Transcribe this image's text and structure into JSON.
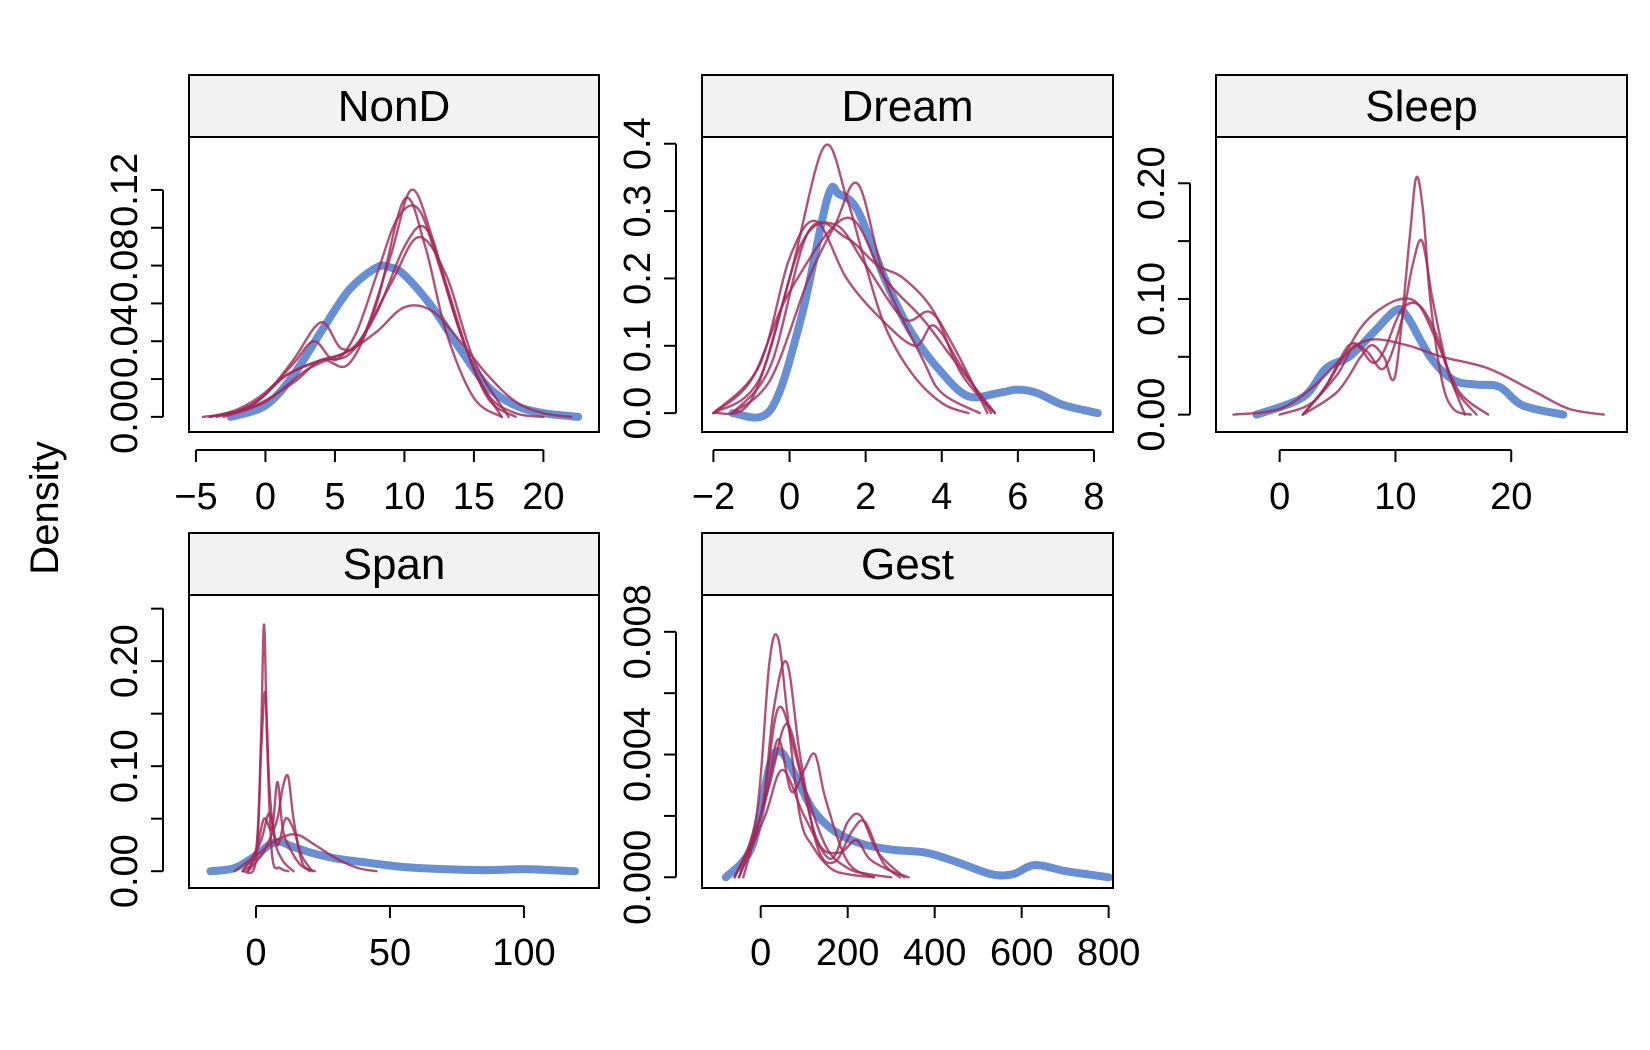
{
  "y_label": "Density",
  "colors": {
    "observed": "#5b84cf",
    "imputed": "#a2295a",
    "strip_bg": "#f2f2f2",
    "axis": "#000000"
  },
  "chart_data": [
    {
      "type": "line",
      "panel": "NonD",
      "title": "NonD",
      "xlim": [
        -5.5,
        24
      ],
      "ylim": [
        -0.008,
        0.148
      ],
      "x_ticks": [
        -5,
        0,
        5,
        10,
        15,
        20
      ],
      "x_tick_labels": [
        "−5",
        "0",
        "5",
        "10",
        "15",
        "20"
      ],
      "y_ticks": [
        0.0,
        0.02,
        0.04,
        0.06,
        0.08,
        0.1,
        0.12
      ],
      "y_tick_labels": [
        "0.00",
        "",
        "0.04",
        "",
        "0.08",
        "",
        "0.12"
      ],
      "observed": {
        "x": [
          -2.5,
          0,
          2,
          4,
          6,
          8,
          9,
          10,
          12,
          14,
          16,
          18,
          20,
          22.5
        ],
        "y": [
          0,
          0.006,
          0.022,
          0.045,
          0.067,
          0.079,
          0.079,
          0.075,
          0.058,
          0.036,
          0.016,
          0.006,
          0.002,
          0
        ]
      },
      "imputed": [
        {
          "x": [
            -4.5,
            -2,
            0,
            2,
            4,
            5.5,
            7,
            9,
            10.5,
            12,
            14,
            16,
            18,
            20
          ],
          "y": [
            0,
            0.003,
            0.012,
            0.03,
            0.05,
            0.036,
            0.042,
            0.085,
            0.12,
            0.095,
            0.045,
            0.012,
            0.002,
            0
          ]
        },
        {
          "x": [
            -4,
            -2,
            0,
            2,
            3.5,
            5,
            6.5,
            8,
            9.5,
            11,
            12.5,
            14,
            16,
            18
          ],
          "y": [
            0,
            0.004,
            0.013,
            0.028,
            0.04,
            0.03,
            0.044,
            0.075,
            0.105,
            0.11,
            0.08,
            0.045,
            0.01,
            0
          ]
        },
        {
          "x": [
            -4,
            -1,
            1.5,
            4,
            6,
            8,
            10,
            11.5,
            13,
            15,
            17
          ],
          "y": [
            0,
            0.006,
            0.022,
            0.03,
            0.033,
            0.055,
            0.09,
            0.1,
            0.07,
            0.025,
            0
          ]
        },
        {
          "x": [
            -3.5,
            -1,
            1.5,
            4,
            6.5,
            9,
            11,
            13,
            15,
            17.5
          ],
          "y": [
            0,
            0.006,
            0.022,
            0.03,
            0.038,
            0.07,
            0.095,
            0.075,
            0.03,
            0
          ]
        },
        {
          "x": [
            -4,
            -1,
            2,
            4,
            6,
            8,
            10,
            11.5,
            13,
            15,
            17
          ],
          "y": [
            0,
            0.005,
            0.018,
            0.03,
            0.028,
            0.06,
            0.115,
            0.09,
            0.045,
            0.01,
            0
          ]
        },
        {
          "x": [
            -3,
            0,
            3,
            6,
            8,
            10,
            12,
            14,
            16,
            18,
            20,
            22
          ],
          "y": [
            0,
            0.008,
            0.025,
            0.035,
            0.045,
            0.058,
            0.056,
            0.04,
            0.022,
            0.008,
            0.002,
            0
          ]
        }
      ]
    },
    {
      "type": "line",
      "panel": "Dream",
      "title": "Dream",
      "xlim": [
        -2.3,
        8.5
      ],
      "ylim": [
        -0.028,
        0.41
      ],
      "x_ticks": [
        -2,
        0,
        2,
        4,
        6,
        8
      ],
      "x_tick_labels": [
        "−2",
        "0",
        "2",
        "4",
        "6",
        "8"
      ],
      "y_ticks": [
        0.0,
        0.1,
        0.2,
        0.3,
        0.4
      ],
      "y_tick_labels": [
        "0.0",
        "0.1",
        "0.2",
        "0.3",
        "0.4"
      ],
      "observed": {
        "x": [
          -1.5,
          -0.5,
          0.3,
          1.0,
          1.3,
          1.8,
          2.5,
          3.2,
          4.0,
          4.7,
          5.5,
          6.0,
          6.5,
          7.2,
          8.1
        ],
        "y": [
          0,
          0.005,
          0.14,
          0.32,
          0.325,
          0.3,
          0.2,
          0.12,
          0.06,
          0.025,
          0.03,
          0.035,
          0.03,
          0.012,
          0
        ]
      },
      "imputed": [
        {
          "x": [
            -2,
            -1,
            0,
            0.9,
            1.5,
            2.0,
            2.5,
            3.2,
            4,
            4.7
          ],
          "y": [
            0,
            0.02,
            0.2,
            0.395,
            0.32,
            0.22,
            0.13,
            0.06,
            0.015,
            0
          ]
        },
        {
          "x": [
            -1.5,
            -0.5,
            0.5,
            1.2,
            1.8,
            2.5,
            3.5,
            4,
            5
          ],
          "y": [
            0,
            0.05,
            0.2,
            0.28,
            0.34,
            0.2,
            0.08,
            0.03,
            0
          ]
        },
        {
          "x": [
            -2,
            -0.8,
            0.3,
            1.2,
            2.0,
            3.0,
            3.7,
            4.3,
            5.2
          ],
          "y": [
            0,
            0.05,
            0.25,
            0.28,
            0.22,
            0.14,
            0.15,
            0.1,
            0
          ]
        },
        {
          "x": [
            -2,
            -0.8,
            0,
            0.7,
            1.5,
            2.4,
            3.3,
            3.8,
            4.5,
            5.3
          ],
          "y": [
            0,
            0.07,
            0.23,
            0.285,
            0.2,
            0.14,
            0.1,
            0.13,
            0.07,
            0
          ]
        },
        {
          "x": [
            -1.5,
            -0.5,
            0.5,
            1.5,
            2.3,
            3.0,
            3.8,
            4.5,
            5.4
          ],
          "y": [
            0,
            0.07,
            0.27,
            0.26,
            0.22,
            0.2,
            0.15,
            0.06,
            0
          ]
        },
        {
          "x": [
            -2,
            -1,
            0,
            1.5,
            2.5,
            3.5,
            4.3,
            5.4
          ],
          "y": [
            0,
            0.05,
            0.18,
            0.29,
            0.2,
            0.14,
            0.08,
            0
          ]
        }
      ]
    },
    {
      "type": "line",
      "panel": "Sleep",
      "title": "Sleep",
      "xlim": [
        -5.5,
        30
      ],
      "ylim": [
        -0.015,
        0.24
      ],
      "x_ticks": [
        0,
        10,
        20
      ],
      "x_tick_labels": [
        "0",
        "10",
        "20"
      ],
      "y_ticks": [
        0.0,
        0.05,
        0.1,
        0.15,
        0.2
      ],
      "y_tick_labels": [
        "0.00",
        "",
        "0.10",
        "",
        "0.20"
      ],
      "observed": {
        "x": [
          -2,
          2,
          4,
          6,
          8,
          10,
          11,
          13,
          15,
          17,
          19,
          21,
          24.5
        ],
        "y": [
          0,
          0.015,
          0.04,
          0.05,
          0.07,
          0.09,
          0.085,
          0.05,
          0.03,
          0.026,
          0.024,
          0.008,
          0
        ]
      },
      "imputed": [
        {
          "x": [
            2,
            5,
            7,
            8,
            9,
            10,
            11.2,
            11.8,
            12.4,
            13,
            14,
            15,
            16.5
          ],
          "y": [
            0,
            0.02,
            0.05,
            0.06,
            0.05,
            0.035,
            0.15,
            0.205,
            0.175,
            0.1,
            0.03,
            0.005,
            0
          ]
        },
        {
          "x": [
            2,
            4,
            6,
            7.5,
            9,
            10.5,
            11.5,
            12.3,
            13.2,
            14.5,
            16
          ],
          "y": [
            0,
            0.025,
            0.06,
            0.055,
            0.04,
            0.08,
            0.13,
            0.15,
            0.1,
            0.04,
            0
          ]
        },
        {
          "x": [
            0,
            3,
            5.5,
            7,
            8.5,
            10.5,
            12,
            13.5,
            15.5,
            18
          ],
          "y": [
            0,
            0.012,
            0.05,
            0.075,
            0.09,
            0.1,
            0.095,
            0.065,
            0.02,
            0
          ]
        },
        {
          "x": [
            -4,
            0,
            3,
            6,
            8,
            11,
            14,
            18,
            22,
            25,
            28
          ],
          "y": [
            0,
            0.005,
            0.025,
            0.055,
            0.065,
            0.06,
            0.05,
            0.04,
            0.02,
            0.005,
            0
          ]
        },
        {
          "x": [
            2,
            5,
            6.5,
            8,
            9,
            10.5,
            12,
            13.5,
            15,
            17
          ],
          "y": [
            0,
            0.035,
            0.06,
            0.045,
            0.055,
            0.09,
            0.095,
            0.07,
            0.025,
            0
          ]
        }
      ]
    },
    {
      "type": "line",
      "panel": "Span",
      "title": "Span",
      "xlim": [
        -25,
        128
      ],
      "ylim": [
        -0.016,
        0.263
      ],
      "x_ticks": [
        0,
        50,
        100
      ],
      "x_tick_labels": [
        "0",
        "50",
        "100"
      ],
      "y_ticks": [
        0.0,
        0.05,
        0.1,
        0.15,
        0.2,
        0.25
      ],
      "y_tick_labels": [
        "0.00",
        "",
        "0.10",
        "",
        "0.20",
        ""
      ],
      "observed": {
        "x": [
          -17,
          -8,
          0,
          5,
          9,
          13,
          20,
          30,
          42,
          55,
          70,
          85,
          100,
          110,
          119
        ],
        "y": [
          0,
          0.003,
          0.015,
          0.025,
          0.028,
          0.024,
          0.018,
          0.012,
          0.008,
          0.004,
          0.002,
          0.001,
          0.002,
          0.001,
          0
        ]
      },
      "imputed": [
        {
          "x": [
            -5,
            0,
            1.8,
            3,
            4.2,
            6,
            9,
            12
          ],
          "y": [
            0,
            0.01,
            0.12,
            0.235,
            0.12,
            0.015,
            0.003,
            0
          ]
        },
        {
          "x": [
            -5,
            0,
            2,
            3.5,
            5,
            7,
            10,
            14
          ],
          "y": [
            0,
            0.02,
            0.12,
            0.17,
            0.08,
            0.03,
            0.01,
            0
          ]
        },
        {
          "x": [
            -5,
            0,
            3,
            6,
            8,
            10,
            13,
            17,
            22
          ],
          "y": [
            0,
            0.02,
            0.05,
            0.04,
            0.085,
            0.04,
            0.02,
            0.005,
            0
          ]
        },
        {
          "x": [
            -3,
            2,
            5,
            8,
            10,
            12,
            14,
            17,
            20
          ],
          "y": [
            0,
            0.015,
            0.03,
            0.05,
            0.08,
            0.09,
            0.05,
            0.01,
            0
          ]
        },
        {
          "x": [
            -3,
            2,
            5,
            8,
            11,
            14,
            17,
            21
          ],
          "y": [
            0,
            0.03,
            0.055,
            0.025,
            0.05,
            0.04,
            0.015,
            0
          ]
        },
        {
          "x": [
            -8,
            0,
            8,
            15,
            22,
            30,
            38,
            45
          ],
          "y": [
            0,
            0.015,
            0.03,
            0.035,
            0.025,
            0.012,
            0.003,
            0
          ]
        }
      ]
    },
    {
      "type": "line",
      "panel": "Gest",
      "title": "Gest",
      "xlim": [
        -135,
        810
      ],
      "ylim": [
        -0.00035,
        0.0092
      ],
      "x_ticks": [
        0,
        200,
        400,
        600,
        800
      ],
      "x_tick_labels": [
        "0",
        "200",
        "400",
        "600",
        "800"
      ],
      "y_ticks": [
        0.0,
        0.002,
        0.004,
        0.006,
        0.008
      ],
      "y_tick_labels": [
        "0.000",
        "",
        "0.004",
        "",
        "0.008"
      ],
      "observed": {
        "x": [
          -80,
          -20,
          20,
          45,
          80,
          120,
          170,
          230,
          300,
          380,
          450,
          530,
          580,
          630,
          700,
          750,
          800
        ],
        "y": [
          0,
          0.001,
          0.0036,
          0.0041,
          0.0033,
          0.0022,
          0.0015,
          0.0011,
          0.0009,
          0.0008,
          0.0005,
          0.0001,
          0.0001,
          0.0004,
          0.0002,
          0.0001,
          0
        ]
      },
      "imputed": [
        {
          "x": [
            -60,
            -10,
            20,
            40,
            60,
            90,
            120,
            160,
            200,
            260
          ],
          "y": [
            0,
            0.002,
            0.007,
            0.0078,
            0.0055,
            0.002,
            0.001,
            0.0003,
            0.0001,
            0
          ]
        },
        {
          "x": [
            -60,
            0,
            30,
            60,
            90,
            130,
            170,
            210,
            240,
            280,
            320
          ],
          "y": [
            0,
            0.002,
            0.0055,
            0.007,
            0.004,
            0.001,
            0.0005,
            0.0015,
            0.0018,
            0.0005,
            0
          ]
        },
        {
          "x": [
            -50,
            10,
            40,
            70,
            100,
            125,
            150,
            200,
            260
          ],
          "y": [
            0,
            0.0025,
            0.0045,
            0.0028,
            0.0035,
            0.004,
            0.0025,
            0.0005,
            0
          ]
        },
        {
          "x": [
            -50,
            10,
            50,
            100,
            160,
            200,
            230,
            270,
            330
          ],
          "y": [
            0,
            0.002,
            0.0035,
            0.002,
            0.0006,
            0.0018,
            0.002,
            0.0008,
            0
          ]
        },
        {
          "x": [
            -60,
            0,
            40,
            80,
            130,
            180,
            220,
            250,
            300,
            340
          ],
          "y": [
            0,
            0.002,
            0.0055,
            0.004,
            0.0012,
            0.0008,
            0.0012,
            0.0006,
            0.0002,
            0
          ]
        },
        {
          "x": [
            -40,
            20,
            60,
            100,
            150,
            200,
            250,
            300
          ],
          "y": [
            0,
            0.003,
            0.005,
            0.003,
            0.001,
            0.0003,
            0.0001,
            0
          ]
        }
      ]
    }
  ]
}
